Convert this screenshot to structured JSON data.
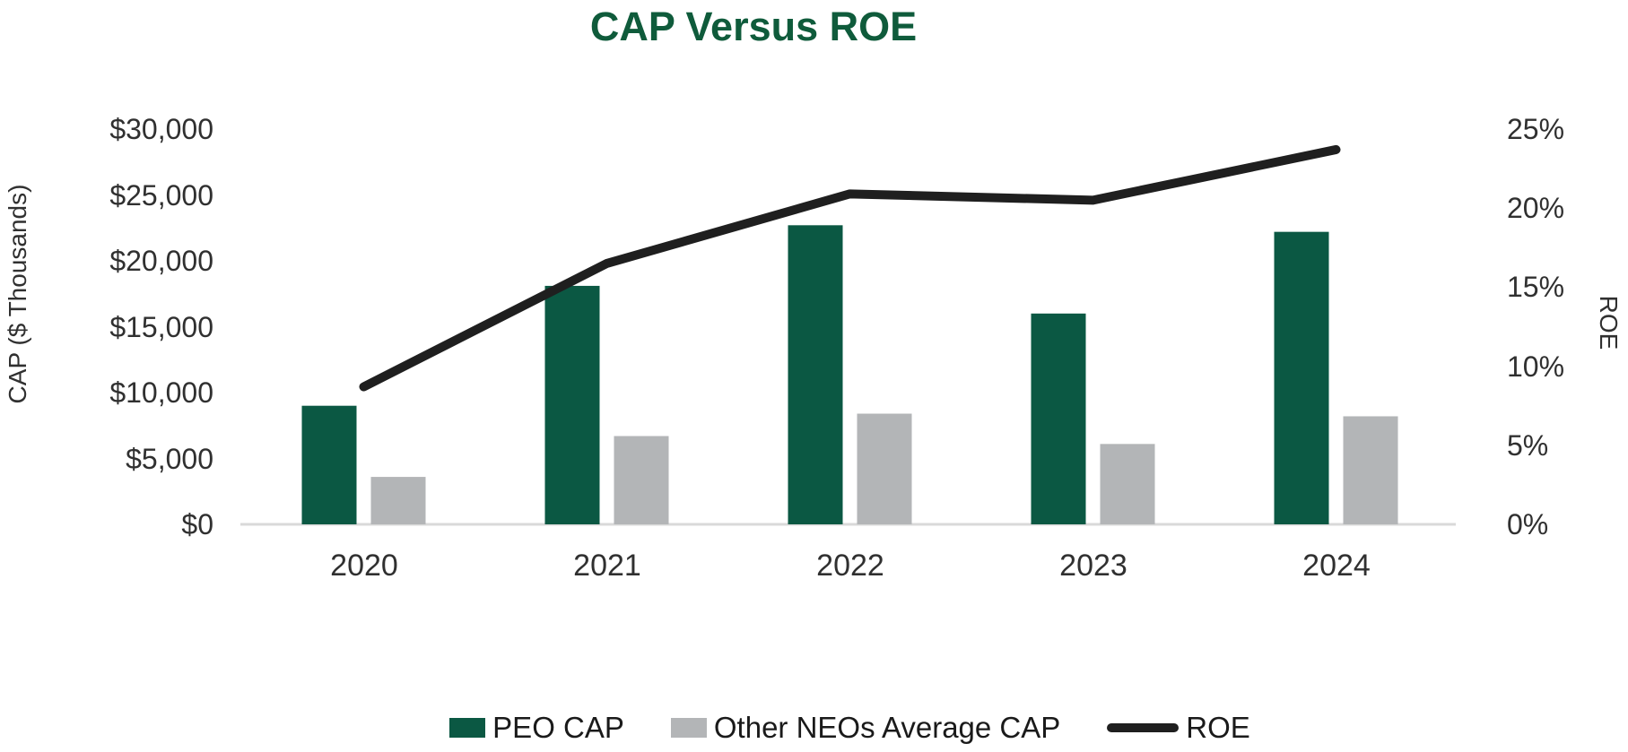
{
  "chart": {
    "title": "CAP Versus ROE"
  },
  "colors": {
    "title_green": "#0F5B3B",
    "peo_bar_green": "#0B5843",
    "neo_bar_gray": "#B3B5B7",
    "roe_line_black": "#1F1F1F",
    "axis_line_gray": "#D9D9D9",
    "label_text": "#303030"
  },
  "chart_data": {
    "type": "bar",
    "subtype": "grouped-bars-with-line-overlay",
    "title": "CAP Versus ROE",
    "categories": [
      "2020",
      "2021",
      "2022",
      "2023",
      "2024"
    ],
    "series": [
      {
        "name": "PEO CAP",
        "type": "bar",
        "axis": "left",
        "color": "#0B5843",
        "values": [
          9000,
          18100,
          22700,
          16000,
          22200
        ]
      },
      {
        "name": "Other NEOs Average CAP",
        "type": "bar",
        "axis": "left",
        "color": "#B3B5B7",
        "values": [
          3600,
          6700,
          8400,
          6100,
          8200
        ]
      },
      {
        "name": "ROE",
        "type": "line",
        "axis": "right",
        "color": "#1F1F1F",
        "values": [
          8.7,
          16.5,
          20.9,
          20.5,
          23.7
        ]
      }
    ],
    "left_axis": {
      "title": "CAP ($ Thousands)",
      "min": 0,
      "max": 30000,
      "tick_step": 5000,
      "tick_labels": [
        "$0",
        "$5,000",
        "$10,000",
        "$15,000",
        "$20,000",
        "$25,000",
        "$30,000"
      ]
    },
    "right_axis": {
      "title": "ROE",
      "min": 0,
      "max": 25,
      "tick_step": 5,
      "tick_labels": [
        "0%",
        "5%",
        "10%",
        "15%",
        "20%",
        "25%"
      ]
    },
    "legend": [
      "PEO CAP",
      "Other NEOs Average CAP",
      "ROE"
    ],
    "legend_position": "bottom",
    "grid": false
  }
}
